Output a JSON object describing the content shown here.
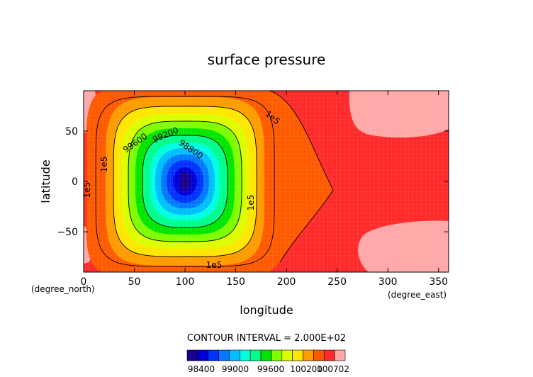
{
  "chart_data": {
    "type": "heatmap",
    "title": "surface pressure",
    "xlabel": "longitude",
    "ylabel": "latitude",
    "x_unit": "(degree_east)",
    "y_unit": "(degree_north)",
    "xlim": [
      0,
      360
    ],
    "ylim": [
      -90,
      90
    ],
    "x_ticks": [
      "0",
      "50",
      "100",
      "150",
      "200",
      "250",
      "300",
      "350"
    ],
    "y_ticks": [
      "50",
      "0",
      "−50"
    ],
    "contour_interval_text": "CONTOUR INTERVAL = 2.000E+02",
    "contour_labels": [
      "1e5",
      "99600",
      "99200",
      "98800"
    ],
    "colorbar_labels": [
      "98400",
      "99000",
      "99600",
      "100200",
      "100702"
    ],
    "colorbar_colors": [
      "#1a0090",
      "#0000d6",
      "#0032ff",
      "#0078ff",
      "#00beff",
      "#00ffe0",
      "#00ff8a",
      "#00e600",
      "#7eff00",
      "#dcff00",
      "#ffe600",
      "#ff9c00",
      "#ff5a00",
      "#ff2a2a",
      "#ffa8a8"
    ],
    "low_center": {
      "lon": 100,
      "lat": 0,
      "min_value": 98400
    },
    "background_value": 100200,
    "grid": true
  }
}
